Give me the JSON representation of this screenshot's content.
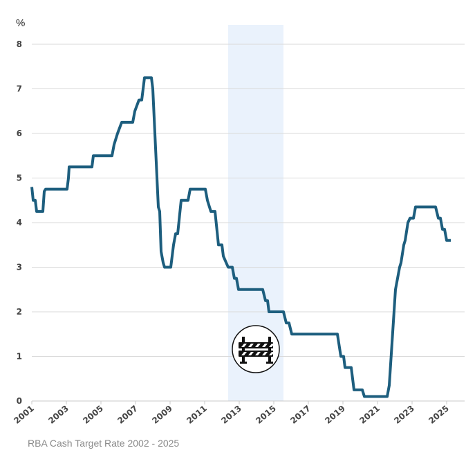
{
  "chart_data": {
    "type": "line",
    "title": "",
    "caption": "RBA Cash Target Rate 2002 - 2025",
    "ylabel": "%",
    "xlabel": "",
    "ylim": [
      0,
      8
    ],
    "xlim": [
      2001,
      2026
    ],
    "yticks": [
      "0",
      "1",
      "2",
      "3",
      "4",
      "5",
      "6",
      "7",
      "8"
    ],
    "xticks": [
      "2001",
      "2003",
      "2005",
      "2007",
      "2009",
      "2011",
      "2013",
      "2015",
      "2017",
      "2019",
      "2021",
      "2023",
      "2025"
    ],
    "grid": "horizontal",
    "highlight_band": {
      "from": 2012.36,
      "to": 2015.56,
      "color": "#eaf2fc",
      "icon": "road-barrier-icon"
    },
    "colors": {
      "line": "#1d5e7e",
      "grid": "#d9d9d9"
    },
    "series": [
      {
        "points": [
          [
            2001.0,
            4.8
          ],
          [
            2001.08,
            4.5
          ],
          [
            2001.2,
            4.5
          ],
          [
            2001.28,
            4.25
          ],
          [
            2001.64,
            4.25
          ],
          [
            2001.72,
            4.7
          ],
          [
            2001.8,
            4.75
          ],
          [
            2003.04,
            4.75
          ],
          [
            2003.12,
            5.0
          ],
          [
            2003.16,
            5.25
          ],
          [
            2004.48,
            5.25
          ],
          [
            2004.56,
            5.5
          ],
          [
            2005.64,
            5.5
          ],
          [
            2005.76,
            5.75
          ],
          [
            2005.96,
            6.0
          ],
          [
            2006.2,
            6.25
          ],
          [
            2006.84,
            6.25
          ],
          [
            2006.96,
            6.5
          ],
          [
            2007.2,
            6.75
          ],
          [
            2007.36,
            6.75
          ],
          [
            2007.52,
            7.25
          ],
          [
            2007.92,
            7.25
          ],
          [
            2008.0,
            7.0
          ],
          [
            2008.32,
            4.35
          ],
          [
            2008.4,
            4.25
          ],
          [
            2008.48,
            3.35
          ],
          [
            2008.6,
            3.1
          ],
          [
            2008.68,
            3.0
          ],
          [
            2009.04,
            3.0
          ],
          [
            2009.2,
            3.5
          ],
          [
            2009.32,
            3.75
          ],
          [
            2009.44,
            3.75
          ],
          [
            2009.64,
            4.5
          ],
          [
            2010.04,
            4.5
          ],
          [
            2010.16,
            4.75
          ],
          [
            2011.04,
            4.75
          ],
          [
            2011.16,
            4.5
          ],
          [
            2011.36,
            4.25
          ],
          [
            2011.6,
            4.25
          ],
          [
            2011.8,
            3.5
          ],
          [
            2012.0,
            3.5
          ],
          [
            2012.08,
            3.25
          ],
          [
            2012.36,
            3.0
          ],
          [
            2012.6,
            3.0
          ],
          [
            2012.72,
            2.75
          ],
          [
            2012.84,
            2.75
          ],
          [
            2012.96,
            2.5
          ],
          [
            2014.36,
            2.5
          ],
          [
            2014.52,
            2.25
          ],
          [
            2014.64,
            2.25
          ],
          [
            2014.72,
            2.0
          ],
          [
            2015.56,
            2.0
          ],
          [
            2015.72,
            1.75
          ],
          [
            2015.88,
            1.75
          ],
          [
            2016.04,
            1.5
          ],
          [
            2018.68,
            1.5
          ],
          [
            2018.88,
            1.0
          ],
          [
            2019.04,
            1.0
          ],
          [
            2019.12,
            0.75
          ],
          [
            2019.48,
            0.75
          ],
          [
            2019.64,
            0.25
          ],
          [
            2020.12,
            0.25
          ],
          [
            2020.24,
            0.1
          ],
          [
            2021.56,
            0.1
          ],
          [
            2021.68,
            0.35
          ],
          [
            2022.04,
            2.5
          ],
          [
            2022.28,
            3.0
          ],
          [
            2022.36,
            3.1
          ],
          [
            2022.52,
            3.5
          ],
          [
            2022.6,
            3.6
          ],
          [
            2022.76,
            4.0
          ],
          [
            2022.88,
            4.1
          ],
          [
            2023.08,
            4.1
          ],
          [
            2023.2,
            4.35
          ],
          [
            2024.36,
            4.35
          ],
          [
            2024.52,
            4.1
          ],
          [
            2024.64,
            4.1
          ],
          [
            2024.76,
            3.85
          ],
          [
            2024.88,
            3.85
          ],
          [
            2025.0,
            3.6
          ],
          [
            2025.24,
            3.6
          ]
        ]
      }
    ]
  }
}
